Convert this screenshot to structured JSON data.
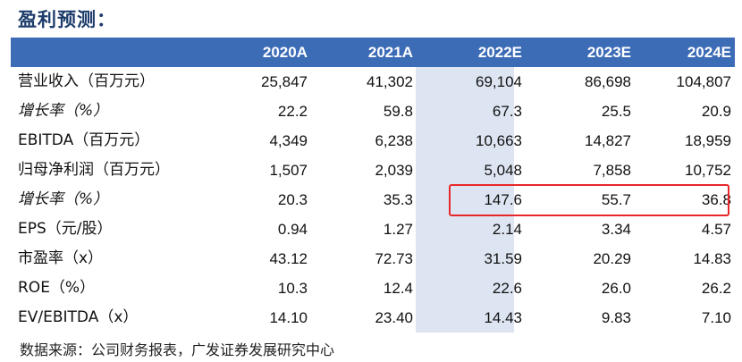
{
  "title": "盈利预测：",
  "columns": [
    "2020A",
    "2021A",
    "2022E",
    "2023E",
    "2024E"
  ],
  "rows": [
    {
      "label": "营业收入（百万元）",
      "italic": false,
      "values": [
        "25,847",
        "41,302",
        "69,104",
        "86,698",
        "104,807"
      ]
    },
    {
      "label": "增长率（%）",
      "italic": true,
      "values": [
        "22.2",
        "59.8",
        "67.3",
        "25.5",
        "20.9"
      ]
    },
    {
      "label": "EBITDA（百万元）",
      "italic": false,
      "values": [
        "4,349",
        "6,238",
        "10,663",
        "14,827",
        "18,959"
      ]
    },
    {
      "label": "归母净利润（百万元）",
      "italic": false,
      "values": [
        "1,507",
        "2,039",
        "5,048",
        "7,858",
        "10,752"
      ]
    },
    {
      "label": "增长率（%）",
      "italic": true,
      "values": [
        "20.3",
        "35.3",
        "147.6",
        "55.7",
        "36.8"
      ]
    },
    {
      "label": "EPS（元/股）",
      "italic": false,
      "values": [
        "0.94",
        "1.27",
        "2.14",
        "3.34",
        "4.57"
      ]
    },
    {
      "label": "市盈率（x）",
      "italic": false,
      "values": [
        "43.12",
        "72.73",
        "31.59",
        "20.29",
        "14.83"
      ]
    },
    {
      "label": "ROE（%）",
      "italic": false,
      "values": [
        "10.3",
        "12.4",
        "22.6",
        "26.0",
        "26.2"
      ]
    },
    {
      "label": "EV/EBITDA（x）",
      "italic": false,
      "values": [
        "14.10",
        "23.40",
        "14.43",
        "9.83",
        "7.10"
      ]
    }
  ],
  "source": "数据来源：公司财务报表，广发证券发展研究中心",
  "colors": {
    "header_bg": "#3d6cb7",
    "shade": "#dde5f2",
    "highlight": "#e8272a"
  }
}
